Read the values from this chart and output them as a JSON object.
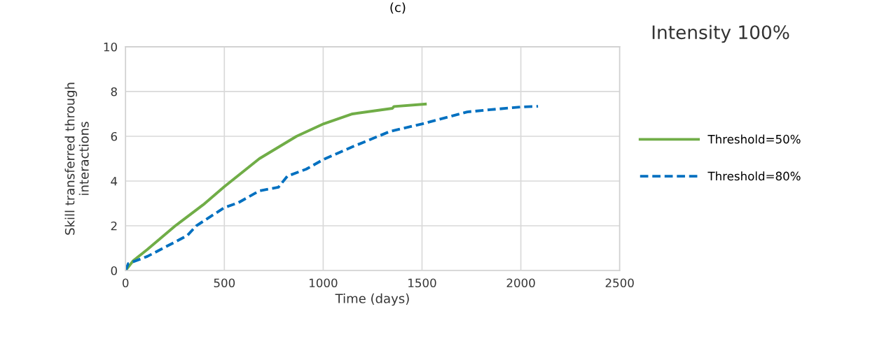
{
  "chart_data": {
    "type": "line",
    "title": "Intensity 100%",
    "annotations": [
      "(c)"
    ],
    "xlabel": "Time (days)",
    "ylabel": "Skill transferred through\ninteractions",
    "xlim": [
      0,
      2500
    ],
    "xticks": [
      0,
      500,
      1000,
      1500,
      2000,
      2500
    ],
    "ylim": [
      0,
      10
    ],
    "yticks": [
      0,
      2,
      4,
      6,
      8,
      10
    ],
    "grid": true,
    "legend": "right",
    "series": [
      {
        "name": "Threshold=50%",
        "color": "#70ad47",
        "line_style": "solid",
        "x": [
          0,
          39,
          110,
          252,
          393,
          500,
          677,
          865,
          1003,
          1148,
          1350,
          1358,
          1517
        ],
        "values": [
          0,
          0.44,
          0.94,
          2.0,
          2.94,
          3.75,
          5.0,
          6.0,
          6.56,
          7.0,
          7.25,
          7.33,
          7.44
        ]
      },
      {
        "name": "Threshold=80%",
        "color": "#0070c0",
        "line_style": "dashed",
        "x": [
          0,
          14,
          110,
          312,
          358,
          500,
          570,
          677,
          773,
          819,
          914,
          1003,
          1148,
          1339,
          1503,
          1729,
          1846,
          1999,
          2087
        ],
        "values": [
          0,
          0.31,
          0.63,
          1.56,
          2.0,
          2.81,
          3.03,
          3.56,
          3.72,
          4.22,
          4.53,
          4.97,
          5.53,
          6.22,
          6.56,
          7.09,
          7.19,
          7.31,
          7.34
        ]
      }
    ]
  }
}
